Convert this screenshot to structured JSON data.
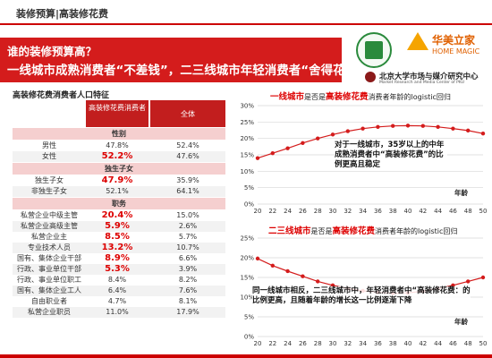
{
  "header": {
    "title": "装修预算|高装修花费"
  },
  "banner": {
    "question": "谁的装修预算高？",
    "statement": "一线城市成熟消费者“不差钱”，二三线城市年轻消费者“舍得花”"
  },
  "logos": {
    "brand_cn": "华美立家",
    "brand_en": "HOME MAGIC",
    "institute_cn": "北京大学市场与媒介研究中心",
    "institute_en": "Market Research and Media Center of PKU"
  },
  "table": {
    "caption": "高装修花费消费者人口特征",
    "col1": "高装修花费消费者",
    "col2": "全体",
    "sections": [
      {
        "title": "性别",
        "rows": [
          {
            "label": "男性",
            "v1": "47.8%",
            "v2": "52.4%",
            "hl": false
          },
          {
            "label": "女性",
            "v1": "52.2%",
            "v2": "47.6%",
            "hl": true
          }
        ]
      },
      {
        "title": "独生子女",
        "rows": [
          {
            "label": "独生子女",
            "v1": "47.9%",
            "v2": "35.9%",
            "hl": true
          },
          {
            "label": "非独生子女",
            "v1": "52.1%",
            "v2": "64.1%",
            "hl": false
          }
        ]
      },
      {
        "title": "职务",
        "rows": [
          {
            "label": "私营企业中级主管",
            "v1": "20.4%",
            "v2": "15.0%",
            "hl": true
          },
          {
            "label": "私营企业高级主管",
            "v1": "5.9%",
            "v2": "2.6%",
            "hl": true
          },
          {
            "label": "私营企业主",
            "v1": "8.5%",
            "v2": "5.7%",
            "hl": true
          },
          {
            "label": "专业技术人员",
            "v1": "13.2%",
            "v2": "10.7%",
            "hl": true
          },
          {
            "label": "国有、集体企业干部",
            "v1": "8.9%",
            "v2": "6.6%",
            "hl": true
          },
          {
            "label": "行政、事业单位干部",
            "v1": "5.3%",
            "v2": "3.9%",
            "hl": true
          },
          {
            "label": "行政、事业单位职工",
            "v1": "8.4%",
            "v2": "8.2%",
            "hl": false
          },
          {
            "label": "国有、集体企业工人",
            "v1": "6.4%",
            "v2": "7.6%",
            "hl": false
          },
          {
            "label": "自由职业者",
            "v1": "4.7%",
            "v2": "8.1%",
            "hl": false
          },
          {
            "label": "私营企业职员",
            "v1": "11.0%",
            "v2": "17.9%",
            "hl": false
          }
        ]
      }
    ]
  },
  "charts": {
    "top": {
      "title_city": "一线城市",
      "title_mid": "是否是",
      "title_key": "高装修花费",
      "title_tail": "消费者年龄的logistic回归",
      "note": "对于一线城市，35岁以上的中年成熟消费者中“高装修花费”的比例更高且稳定",
      "xlabel": "年龄"
    },
    "bottom": {
      "title_city": "二三线城市",
      "title_mid": "是否是",
      "title_key": "高装修花费",
      "title_tail": "消费者年龄的logistic回归",
      "note": "同一线城市相反，二三线城市中，年轻消费者中“高装修花费：的比例更高，且随着年龄的增长这一比例逐渐下降",
      "xlabel": "年龄"
    }
  },
  "chart_data": [
    {
      "type": "line",
      "title": "一线城市是否是高装修花费消费者年龄的logistic回归",
      "xlabel": "年龄",
      "ylabel": "",
      "x": [
        20,
        22,
        24,
        26,
        28,
        30,
        32,
        34,
        36,
        38,
        40,
        42,
        44,
        46,
        48,
        50
      ],
      "series": [
        {
          "values": [
            14.0,
            15.5,
            17.0,
            18.6,
            20.0,
            21.2,
            22.2,
            23.0,
            23.5,
            23.8,
            23.9,
            23.8,
            23.5,
            23.0,
            22.4,
            21.5
          ]
        }
      ],
      "ylim": [
        0,
        30
      ],
      "yticks": [
        "0%",
        "5%",
        "10%",
        "15%",
        "20%",
        "25%",
        "30%"
      ],
      "grid": true,
      "color": "#d41c1c"
    },
    {
      "type": "line",
      "title": "二三线城市是否是高装修花费消费者年龄的logistic回归",
      "xlabel": "年龄",
      "ylabel": "",
      "x": [
        20,
        22,
        24,
        26,
        28,
        30,
        32,
        34,
        36,
        38,
        40,
        42,
        44,
        46,
        48,
        50
      ],
      "series": [
        {
          "values": [
            19.8,
            18.0,
            16.6,
            15.3,
            14.0,
            13.0,
            12.2,
            11.6,
            11.2,
            11.0,
            11.1,
            11.5,
            12.2,
            13.0,
            14.0,
            15.0
          ]
        }
      ],
      "ylim": [
        0,
        25
      ],
      "yticks": [
        "0%",
        "5%",
        "10%",
        "15%",
        "20%",
        "25%"
      ],
      "grid": true,
      "color": "#d41c1c"
    }
  ],
  "colors": {
    "accent": "#d41c1c",
    "section": "#f5cfcf"
  }
}
